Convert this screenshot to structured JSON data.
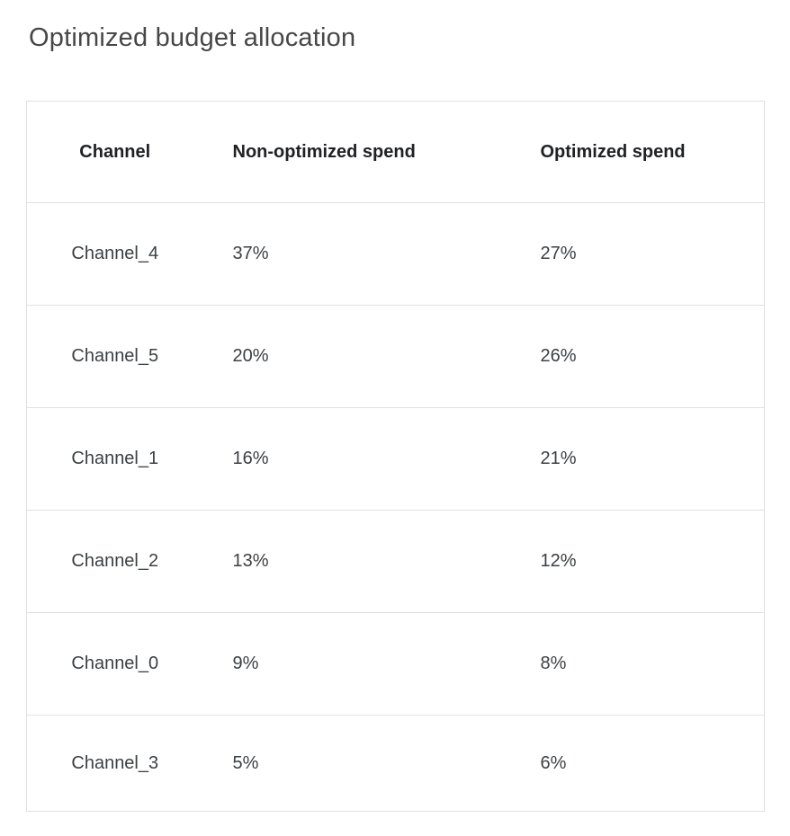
{
  "page_title": "Optimized budget allocation",
  "table": {
    "headers": {
      "channel": "Channel",
      "non_optimized": "Non-optimized spend",
      "optimized": "Optimized spend"
    },
    "rows": [
      {
        "channel": "Channel_4",
        "non_optimized": "37%",
        "optimized": "27%"
      },
      {
        "channel": "Channel_5",
        "non_optimized": "20%",
        "optimized": "26%"
      },
      {
        "channel": "Channel_1",
        "non_optimized": "16%",
        "optimized": "21%"
      },
      {
        "channel": "Channel_2",
        "non_optimized": "13%",
        "optimized": "12%"
      },
      {
        "channel": "Channel_0",
        "non_optimized": "9%",
        "optimized": "8%"
      },
      {
        "channel": "Channel_3",
        "non_optimized": "5%",
        "optimized": "6%"
      }
    ]
  },
  "colors": {
    "title_text": "#474747",
    "header_text": "#202124",
    "cell_text": "#3c4043",
    "border": "#e0e0e0",
    "background": "#ffffff"
  },
  "chart_data": {
    "type": "table",
    "title": "Optimized budget allocation",
    "columns": [
      "Channel",
      "Non-optimized spend",
      "Optimized spend"
    ],
    "rows": [
      [
        "Channel_4",
        "37%",
        "27%"
      ],
      [
        "Channel_5",
        "20%",
        "26%"
      ],
      [
        "Channel_1",
        "16%",
        "21%"
      ],
      [
        "Channel_2",
        "13%",
        "12%"
      ],
      [
        "Channel_0",
        "9%",
        "8%"
      ],
      [
        "Channel_3",
        "5%",
        "6%"
      ]
    ]
  }
}
